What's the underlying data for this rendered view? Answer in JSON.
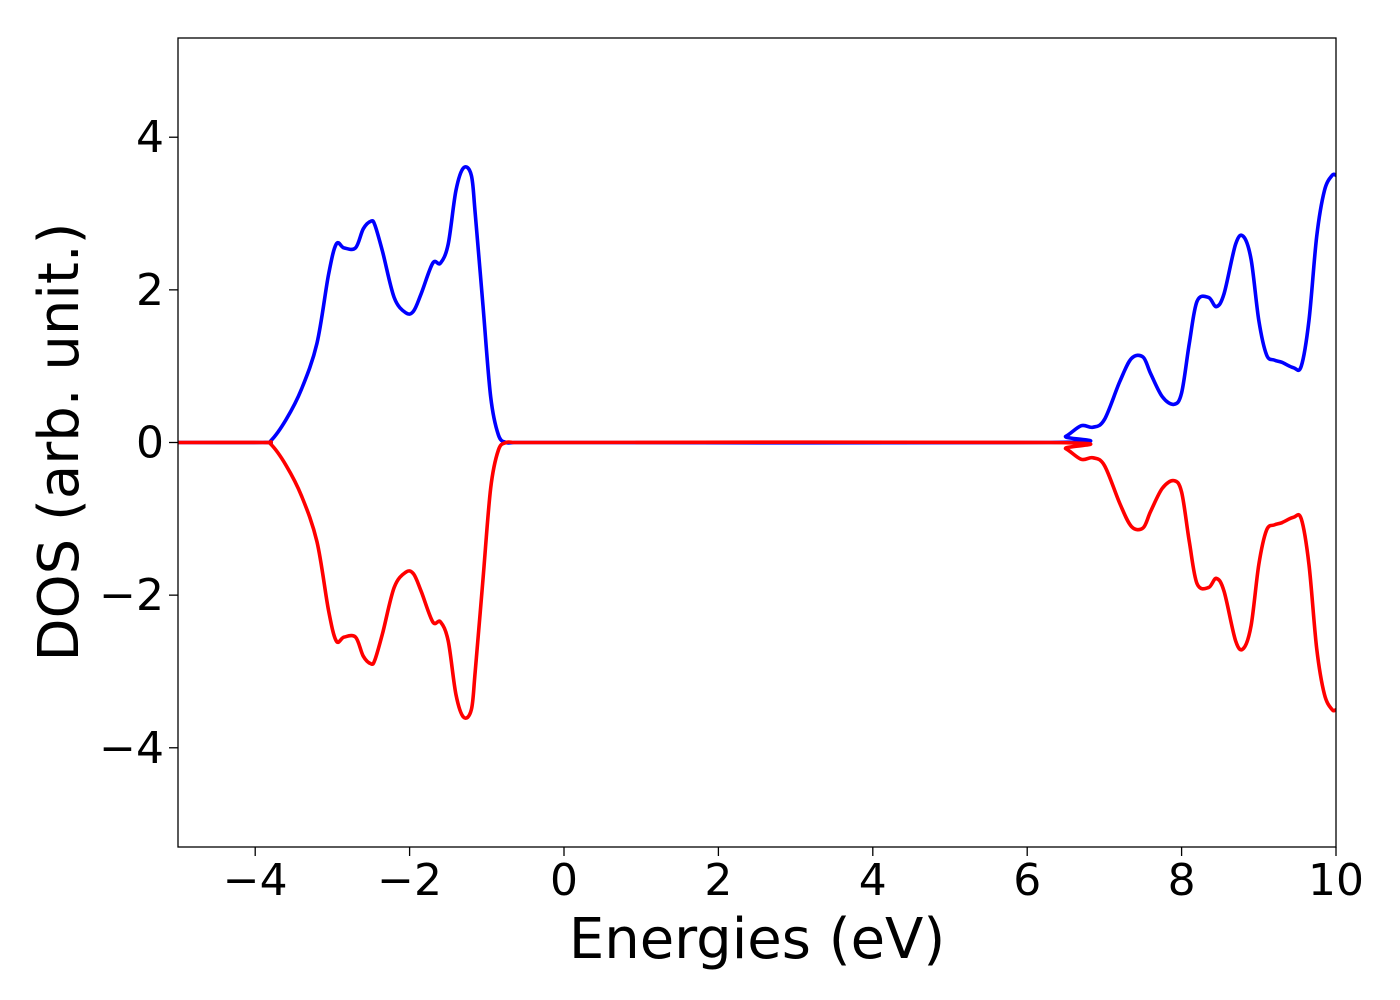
{
  "chart_data": {
    "type": "line",
    "title": "",
    "xlabel": "Energies (eV)",
    "ylabel": "DOS (arb. unit.)",
    "xlim": [
      -5,
      10
    ],
    "ylim": [
      -5.3,
      5.3
    ],
    "xticks": [
      -4,
      -2,
      0,
      2,
      4,
      6,
      8,
      10
    ],
    "xtick_labels": [
      "−4",
      "−2",
      "0",
      "2",
      "4",
      "6",
      "8",
      "10"
    ],
    "yticks": [
      4,
      2,
      0,
      -2,
      -4
    ],
    "ytick_labels": [
      "4",
      "2",
      "0",
      "−2",
      "−4"
    ],
    "grid": false,
    "legend": "none",
    "series": [
      {
        "color": "#0000ff",
        "x": [
          -5.0,
          -3.9,
          -3.8,
          -3.6,
          -3.4,
          -3.2,
          -3.05,
          -2.95,
          -2.85,
          -2.7,
          -2.6,
          -2.5,
          -2.45,
          -2.35,
          -2.2,
          -2.05,
          -1.95,
          -1.85,
          -1.7,
          -1.6,
          -1.5,
          -1.4,
          -1.3,
          -1.2,
          -1.15,
          -1.05,
          -0.95,
          -0.85,
          -0.75,
          -0.65,
          -0.55,
          -0.45,
          0.0,
          6.3,
          6.5,
          6.7,
          6.85,
          7.0,
          7.2,
          7.35,
          7.5,
          7.6,
          7.75,
          7.9,
          8.0,
          8.1,
          8.2,
          8.35,
          8.45,
          8.55,
          8.7,
          8.8,
          8.9,
          9.0,
          9.1,
          9.2,
          9.3,
          9.45,
          9.55,
          9.65,
          9.75,
          9.85,
          9.95,
          10.0
        ],
        "y": [
          0.0,
          0.0,
          0.02,
          0.3,
          0.7,
          1.3,
          2.2,
          2.6,
          2.55,
          2.55,
          2.8,
          2.9,
          2.85,
          2.5,
          1.9,
          1.7,
          1.72,
          1.95,
          2.35,
          2.35,
          2.6,
          3.3,
          3.6,
          3.5,
          3.0,
          1.8,
          0.6,
          0.1,
          0.0,
          0.0,
          0.0,
          0.0,
          0.0,
          0.0,
          0.08,
          0.22,
          0.2,
          0.3,
          0.8,
          1.1,
          1.12,
          0.9,
          0.6,
          0.5,
          0.65,
          1.3,
          1.85,
          1.9,
          1.78,
          1.95,
          2.6,
          2.7,
          2.4,
          1.6,
          1.15,
          1.08,
          1.05,
          0.98,
          1.0,
          1.6,
          2.7,
          3.3,
          3.5,
          3.5
        ]
      },
      {
        "color": "#ff0000",
        "x": [
          -5.0,
          -3.9,
          -3.8,
          -3.6,
          -3.4,
          -3.2,
          -3.05,
          -2.95,
          -2.85,
          -2.7,
          -2.6,
          -2.5,
          -2.45,
          -2.35,
          -2.2,
          -2.05,
          -1.95,
          -1.85,
          -1.7,
          -1.6,
          -1.5,
          -1.4,
          -1.3,
          -1.2,
          -1.15,
          -1.05,
          -0.95,
          -0.85,
          -0.75,
          -0.65,
          -0.55,
          -0.45,
          0.0,
          6.3,
          6.5,
          6.7,
          6.85,
          7.0,
          7.2,
          7.35,
          7.5,
          7.6,
          7.75,
          7.9,
          8.0,
          8.1,
          8.2,
          8.35,
          8.45,
          8.55,
          8.7,
          8.8,
          8.9,
          9.0,
          9.1,
          9.2,
          9.3,
          9.45,
          9.55,
          9.65,
          9.75,
          9.85,
          9.95,
          10.0
        ],
        "y": [
          0.0,
          0.0,
          -0.02,
          -0.3,
          -0.7,
          -1.3,
          -2.2,
          -2.6,
          -2.55,
          -2.55,
          -2.8,
          -2.9,
          -2.85,
          -2.5,
          -1.9,
          -1.7,
          -1.72,
          -1.95,
          -2.35,
          -2.35,
          -2.6,
          -3.3,
          -3.6,
          -3.5,
          -3.0,
          -1.8,
          -0.6,
          -0.1,
          0.0,
          0.0,
          0.0,
          0.0,
          0.0,
          0.0,
          -0.08,
          -0.22,
          -0.2,
          -0.3,
          -0.8,
          -1.1,
          -1.12,
          -0.9,
          -0.6,
          -0.5,
          -0.65,
          -1.3,
          -1.85,
          -1.9,
          -1.78,
          -1.95,
          -2.6,
          -2.7,
          -2.4,
          -1.6,
          -1.15,
          -1.08,
          -1.05,
          -0.98,
          -1.0,
          -1.6,
          -2.7,
          -3.3,
          -3.5,
          -3.5
        ]
      }
    ]
  }
}
